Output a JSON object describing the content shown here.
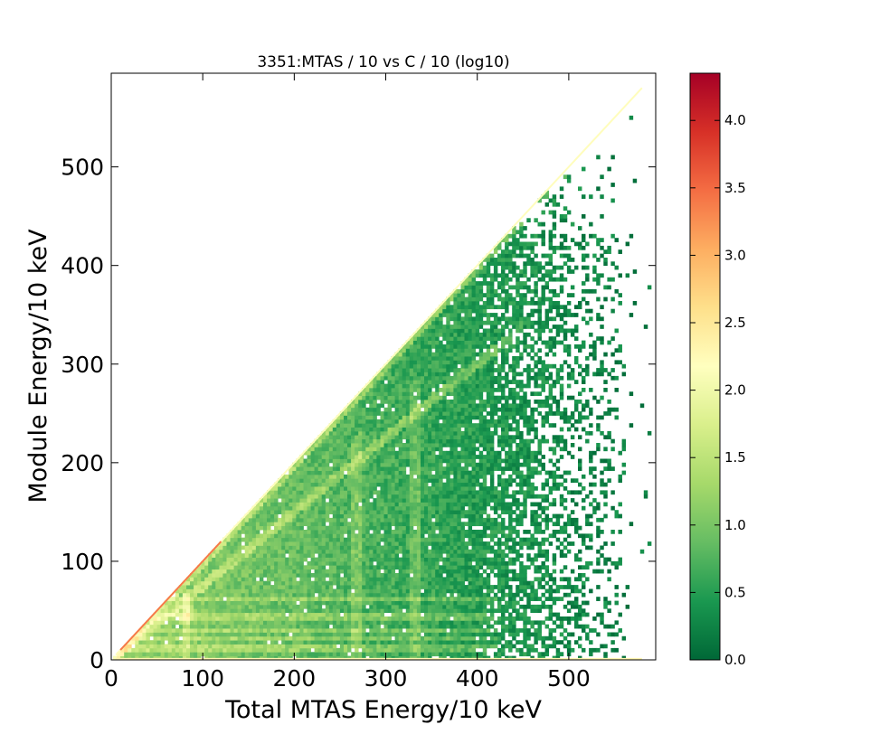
{
  "chart_data": {
    "type": "heatmap",
    "title": "3351:MTAS / 10  vs C / 10 (log10)",
    "xlabel": "Total MTAS Energy/10 keV",
    "ylabel": "Module Energy/10 keV",
    "xlim": [
      0,
      595
    ],
    "ylim": [
      0,
      595
    ],
    "x_ticks": [
      0,
      100,
      200,
      300,
      400,
      500
    ],
    "y_ticks": [
      0,
      100,
      200,
      300,
      400,
      500
    ],
    "colorbar": {
      "range": [
        0.0,
        4.35
      ],
      "ticks": [
        0.0,
        0.5,
        1.0,
        1.5,
        2.0,
        2.5,
        3.0,
        3.5,
        4.0
      ],
      "tick_labels": [
        "0.0",
        "0.5",
        "1.0",
        "1.5",
        "2.0",
        "2.5",
        "3.0",
        "3.5",
        "4.0"
      ],
      "colors": [
        "#006837",
        "#1a9850",
        "#66bd63",
        "#a6d96a",
        "#d9ef8b",
        "#ffffbf",
        "#fee08b",
        "#fdae61",
        "#f46d43",
        "#d73027",
        "#a50026"
      ]
    },
    "features": {
      "diagonal_ridge": {
        "x_max": 580,
        "level": 2.2
      },
      "internal_ridge": {
        "slope": 0.75,
        "x_max": 450,
        "level": 1.6
      },
      "horizontal_bands": [
        {
          "y": 10,
          "level": 1.5
        },
        {
          "y": 20,
          "level": 1.3
        },
        {
          "y": 28,
          "level": 1.4
        },
        {
          "y": 42,
          "level": 1.1
        },
        {
          "y": 60,
          "level": 0.9
        }
      ],
      "vertical_bands": [
        {
          "x": 80,
          "level": 1.6
        },
        {
          "x": 265,
          "level": 1.0
        },
        {
          "x": 330,
          "level": 0.9
        }
      ],
      "hot_spot": {
        "x": 80,
        "y": 45,
        "level": 2.2
      }
    }
  }
}
